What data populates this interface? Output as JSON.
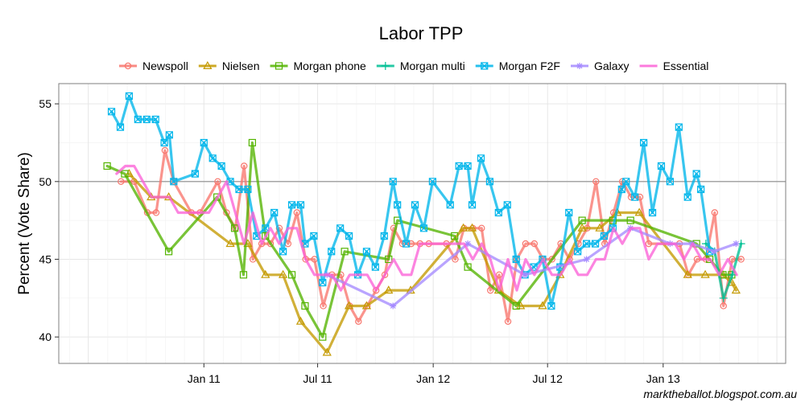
{
  "chart_data": {
    "type": "line",
    "title": "Labor TPP",
    "ylabel": "Percent (Vote Share)",
    "xlabel": "",
    "credit": "marktheballot.blogspot.com.au",
    "xlim": [
      "2010-05-15",
      "2013-07-15"
    ],
    "ylim": [
      38.3,
      56.3
    ],
    "yticks": [
      40,
      45,
      50,
      55
    ],
    "xticks": [
      {
        "date": "2011-01-01",
        "label": "Jan 11"
      },
      {
        "date": "2011-07-01",
        "label": "Jul 11"
      },
      {
        "date": "2012-01-01",
        "label": "Jan 12"
      },
      {
        "date": "2012-07-01",
        "label": "Jul 12"
      },
      {
        "date": "2013-01-01",
        "label": "Jan 13"
      }
    ],
    "reference_line": 50,
    "grid": true,
    "legend_position": "top",
    "series": [
      {
        "name": "Newspoll",
        "color": "#F8766D",
        "marker": "circle",
        "points": [
          [
            "2010-08-22",
            50
          ],
          [
            "2010-09-12",
            50
          ],
          [
            "2010-10-03",
            48
          ],
          [
            "2010-10-17",
            48
          ],
          [
            "2010-10-31",
            52
          ],
          [
            "2010-11-14",
            50
          ],
          [
            "2010-12-12",
            48
          ],
          [
            "2010-12-26",
            48
          ],
          [
            "2011-01-23",
            50
          ],
          [
            "2011-02-06",
            48
          ],
          [
            "2011-02-20",
            47
          ],
          [
            "2011-03-06",
            51
          ],
          [
            "2011-03-20",
            45
          ],
          [
            "2011-04-03",
            46
          ],
          [
            "2011-04-17",
            46
          ],
          [
            "2011-05-01",
            47
          ],
          [
            "2011-05-15",
            46
          ],
          [
            "2011-05-29",
            48
          ],
          [
            "2011-06-12",
            45
          ],
          [
            "2011-06-26",
            45
          ],
          [
            "2011-07-10",
            42
          ],
          [
            "2011-07-24",
            44
          ],
          [
            "2011-08-07",
            44
          ],
          [
            "2011-08-21",
            42
          ],
          [
            "2011-09-04",
            41
          ],
          [
            "2011-09-18",
            42
          ],
          [
            "2011-10-02",
            43
          ],
          [
            "2011-10-16",
            44
          ],
          [
            "2011-10-30",
            47
          ],
          [
            "2011-11-13",
            46
          ],
          [
            "2011-11-27",
            46
          ],
          [
            "2011-12-11",
            46
          ],
          [
            "2011-12-25",
            46
          ],
          [
            "2012-01-22",
            46
          ],
          [
            "2012-02-05",
            45
          ],
          [
            "2012-02-19",
            47
          ],
          [
            "2012-03-04",
            47
          ],
          [
            "2012-03-18",
            47
          ],
          [
            "2012-04-01",
            43
          ],
          [
            "2012-04-15",
            44
          ],
          [
            "2012-04-29",
            41
          ],
          [
            "2012-05-13",
            45
          ],
          [
            "2012-05-27",
            46
          ],
          [
            "2012-06-10",
            46
          ],
          [
            "2012-06-24",
            45
          ],
          [
            "2012-07-08",
            45
          ],
          [
            "2012-07-22",
            46
          ],
          [
            "2012-08-05",
            45
          ],
          [
            "2012-08-19",
            46
          ],
          [
            "2012-09-02",
            47
          ],
          [
            "2012-09-16",
            50
          ],
          [
            "2012-09-30",
            46
          ],
          [
            "2012-10-14",
            48
          ],
          [
            "2012-10-28",
            50
          ],
          [
            "2012-11-11",
            49
          ],
          [
            "2012-11-25",
            49
          ],
          [
            "2012-12-09",
            46
          ],
          [
            "2013-01-27",
            46
          ],
          [
            "2013-02-10",
            44
          ],
          [
            "2013-02-24",
            45
          ],
          [
            "2013-03-10",
            45
          ],
          [
            "2013-03-24",
            48
          ],
          [
            "2013-04-07",
            42
          ],
          [
            "2013-04-21",
            45
          ],
          [
            "2013-05-05",
            45
          ]
        ]
      },
      {
        "name": "Nielsen",
        "color": "#C49A00",
        "marker": "triangle",
        "points": [
          [
            "2010-09-04",
            50.5
          ],
          [
            "2010-10-09",
            49
          ],
          [
            "2010-11-06",
            49
          ],
          [
            "2011-02-12",
            46
          ],
          [
            "2011-03-12",
            46
          ],
          [
            "2011-04-09",
            44
          ],
          [
            "2011-05-07",
            44
          ],
          [
            "2011-06-04",
            41
          ],
          [
            "2011-07-16",
            39
          ],
          [
            "2011-08-20",
            42
          ],
          [
            "2011-09-17",
            42
          ],
          [
            "2011-10-22",
            43
          ],
          [
            "2011-11-26",
            43
          ],
          [
            "2012-02-18",
            47
          ],
          [
            "2012-03-03",
            47
          ],
          [
            "2012-04-14",
            43
          ],
          [
            "2012-05-19",
            42
          ],
          [
            "2012-06-23",
            42
          ],
          [
            "2012-07-21",
            44
          ],
          [
            "2012-08-25",
            47
          ],
          [
            "2012-09-22",
            47
          ],
          [
            "2012-10-20",
            48
          ],
          [
            "2012-11-24",
            48
          ],
          [
            "2013-02-09",
            44
          ],
          [
            "2013-03-09",
            44
          ],
          [
            "2013-04-06",
            44
          ],
          [
            "2013-04-20",
            43.5
          ],
          [
            "2013-04-27",
            43
          ]
        ]
      },
      {
        "name": "Morgan phone",
        "color": "#53B400",
        "marker": "square",
        "points": [
          [
            "2010-07-31",
            51
          ],
          [
            "2010-08-28",
            50.5
          ],
          [
            "2010-11-06",
            45.5
          ],
          [
            "2011-01-22",
            49
          ],
          [
            "2011-02-19",
            47
          ],
          [
            "2011-03-05",
            44
          ],
          [
            "2011-03-19",
            52.5
          ],
          [
            "2011-04-09",
            46.5
          ],
          [
            "2011-05-21",
            44
          ],
          [
            "2011-06-11",
            42
          ],
          [
            "2011-07-09",
            40
          ],
          [
            "2011-08-13",
            45.5
          ],
          [
            "2011-10-22",
            45
          ],
          [
            "2011-11-05",
            47.5
          ],
          [
            "2012-02-04",
            46.5
          ],
          [
            "2012-02-25",
            44.5
          ],
          [
            "2012-05-12",
            42
          ],
          [
            "2012-08-25",
            47.5
          ],
          [
            "2012-10-13",
            47.5
          ],
          [
            "2012-11-10",
            47.5
          ],
          [
            "2013-02-23",
            46
          ],
          [
            "2013-03-16",
            45
          ],
          [
            "2013-04-06",
            44
          ],
          [
            "2013-04-20",
            44
          ]
        ]
      },
      {
        "name": "Morgan multi",
        "color": "#00C094",
        "marker": "plus",
        "points": [
          [
            "2013-03-10",
            46
          ],
          [
            "2013-03-24",
            45.5
          ],
          [
            "2013-04-07",
            42.5
          ],
          [
            "2013-04-21",
            44
          ],
          [
            "2013-05-05",
            46
          ]
        ]
      },
      {
        "name": "Morgan F2F",
        "color": "#00B6EB",
        "marker": "square-x",
        "points": [
          [
            "2010-08-07",
            54.5
          ],
          [
            "2010-08-21",
            53.5
          ],
          [
            "2010-09-04",
            55.5
          ],
          [
            "2010-09-18",
            54
          ],
          [
            "2010-10-02",
            54
          ],
          [
            "2010-10-16",
            54
          ],
          [
            "2010-10-30",
            52.5
          ],
          [
            "2010-11-07",
            53
          ],
          [
            "2010-11-14",
            50
          ],
          [
            "2010-12-18",
            50.5
          ],
          [
            "2011-01-01",
            52.5
          ],
          [
            "2011-01-15",
            51.5
          ],
          [
            "2011-01-29",
            51
          ],
          [
            "2011-02-12",
            50
          ],
          [
            "2011-02-26",
            49.5
          ],
          [
            "2011-03-12",
            49.5
          ],
          [
            "2011-03-26",
            46.5
          ],
          [
            "2011-04-09",
            47
          ],
          [
            "2011-04-23",
            48
          ],
          [
            "2011-05-07",
            45.5
          ],
          [
            "2011-05-21",
            48.5
          ],
          [
            "2011-06-04",
            48.5
          ],
          [
            "2011-06-11",
            46
          ],
          [
            "2011-06-25",
            46.5
          ],
          [
            "2011-07-09",
            43.5
          ],
          [
            "2011-07-23",
            45.5
          ],
          [
            "2011-08-06",
            47
          ],
          [
            "2011-08-20",
            46.5
          ],
          [
            "2011-09-03",
            44
          ],
          [
            "2011-09-17",
            45.5
          ],
          [
            "2011-10-01",
            44.5
          ],
          [
            "2011-10-15",
            46.5
          ],
          [
            "2011-10-29",
            50
          ],
          [
            "2011-11-05",
            48.5
          ],
          [
            "2011-11-19",
            46
          ],
          [
            "2011-12-03",
            48.5
          ],
          [
            "2011-12-17",
            47
          ],
          [
            "2011-12-31",
            50
          ],
          [
            "2012-01-28",
            48.5
          ],
          [
            "2012-02-11",
            51
          ],
          [
            "2012-02-25",
            51
          ],
          [
            "2012-03-03",
            48.5
          ],
          [
            "2012-03-17",
            51.5
          ],
          [
            "2012-03-31",
            50
          ],
          [
            "2012-04-14",
            48
          ],
          [
            "2012-04-28",
            48.5
          ],
          [
            "2012-05-12",
            45
          ],
          [
            "2012-05-26",
            44
          ],
          [
            "2012-06-09",
            44.5
          ],
          [
            "2012-06-23",
            45
          ],
          [
            "2012-07-07",
            42
          ],
          [
            "2012-07-21",
            44.5
          ],
          [
            "2012-08-04",
            48
          ],
          [
            "2012-08-18",
            45.5
          ],
          [
            "2012-09-01",
            46
          ],
          [
            "2012-09-15",
            46
          ],
          [
            "2012-09-29",
            46.5
          ],
          [
            "2012-10-13",
            47
          ],
          [
            "2012-10-27",
            49.5
          ],
          [
            "2012-11-03",
            50
          ],
          [
            "2012-11-17",
            49
          ],
          [
            "2012-12-01",
            52.5
          ],
          [
            "2012-12-15",
            48
          ],
          [
            "2012-12-29",
            51
          ],
          [
            "2013-01-12",
            50
          ],
          [
            "2013-01-26",
            53.5
          ],
          [
            "2013-02-09",
            49
          ],
          [
            "2013-02-23",
            50.5
          ],
          [
            "2013-03-02",
            49.5
          ],
          [
            "2013-03-16",
            45.5
          ]
        ]
      },
      {
        "name": "Galaxy",
        "color": "#A58AFF",
        "marker": "star",
        "points": [
          [
            "2011-07-16",
            44
          ],
          [
            "2011-10-29",
            42
          ],
          [
            "2012-02-25",
            46
          ],
          [
            "2012-05-26",
            44
          ],
          [
            "2012-09-01",
            45
          ],
          [
            "2012-11-10",
            47
          ],
          [
            "2013-01-12",
            46
          ],
          [
            "2013-02-16",
            46
          ],
          [
            "2013-03-23",
            45.5
          ],
          [
            "2013-04-27",
            46
          ]
        ]
      },
      {
        "name": "Essential",
        "color": "#FB61D7",
        "marker": "none",
        "points": [
          [
            "2010-08-15",
            50.5
          ],
          [
            "2010-08-29",
            51
          ],
          [
            "2010-09-12",
            51
          ],
          [
            "2010-09-26",
            50
          ],
          [
            "2010-10-10",
            49
          ],
          [
            "2010-10-24",
            49
          ],
          [
            "2010-11-07",
            49
          ],
          [
            "2010-11-21",
            48
          ],
          [
            "2010-12-05",
            48
          ],
          [
            "2010-12-19",
            48
          ],
          [
            "2011-01-09",
            48
          ],
          [
            "2011-01-23",
            49
          ],
          [
            "2011-02-06",
            50
          ],
          [
            "2011-02-20",
            48
          ],
          [
            "2011-03-06",
            46
          ],
          [
            "2011-03-20",
            48
          ],
          [
            "2011-04-03",
            46
          ],
          [
            "2011-04-17",
            47
          ],
          [
            "2011-05-01",
            46
          ],
          [
            "2011-05-15",
            47
          ],
          [
            "2011-05-29",
            47
          ],
          [
            "2011-06-12",
            45
          ],
          [
            "2011-06-26",
            44
          ],
          [
            "2011-07-10",
            44
          ],
          [
            "2011-07-24",
            44
          ],
          [
            "2011-08-07",
            43
          ],
          [
            "2011-08-21",
            44
          ],
          [
            "2011-09-04",
            44
          ],
          [
            "2011-09-18",
            44
          ],
          [
            "2011-10-02",
            43
          ],
          [
            "2011-10-16",
            44
          ],
          [
            "2011-10-30",
            45
          ],
          [
            "2011-11-13",
            44
          ],
          [
            "2011-11-27",
            44
          ],
          [
            "2011-12-11",
            46
          ],
          [
            "2011-12-25",
            46
          ],
          [
            "2012-01-22",
            46
          ],
          [
            "2012-02-05",
            46
          ],
          [
            "2012-02-19",
            46
          ],
          [
            "2012-03-04",
            45
          ],
          [
            "2012-03-18",
            46
          ],
          [
            "2012-04-01",
            45
          ],
          [
            "2012-04-15",
            43
          ],
          [
            "2012-04-29",
            45
          ],
          [
            "2012-05-13",
            43
          ],
          [
            "2012-05-27",
            45
          ],
          [
            "2012-06-10",
            44
          ],
          [
            "2012-06-24",
            45
          ],
          [
            "2012-07-08",
            44
          ],
          [
            "2012-07-22",
            44
          ],
          [
            "2012-08-05",
            45
          ],
          [
            "2012-08-19",
            44
          ],
          [
            "2012-09-02",
            44
          ],
          [
            "2012-09-16",
            45
          ],
          [
            "2012-09-30",
            45
          ],
          [
            "2012-10-14",
            47
          ],
          [
            "2012-10-28",
            46
          ],
          [
            "2012-11-11",
            47
          ],
          [
            "2012-11-25",
            47
          ],
          [
            "2012-12-09",
            45
          ],
          [
            "2012-12-23",
            46
          ],
          [
            "2013-01-06",
            46
          ],
          [
            "2013-01-20",
            46
          ],
          [
            "2013-02-03",
            45
          ],
          [
            "2013-02-17",
            46
          ],
          [
            "2013-03-03",
            45
          ],
          [
            "2013-03-17",
            45
          ],
          [
            "2013-03-31",
            44
          ],
          [
            "2013-04-14",
            45
          ],
          [
            "2013-04-28",
            44
          ]
        ]
      }
    ]
  }
}
